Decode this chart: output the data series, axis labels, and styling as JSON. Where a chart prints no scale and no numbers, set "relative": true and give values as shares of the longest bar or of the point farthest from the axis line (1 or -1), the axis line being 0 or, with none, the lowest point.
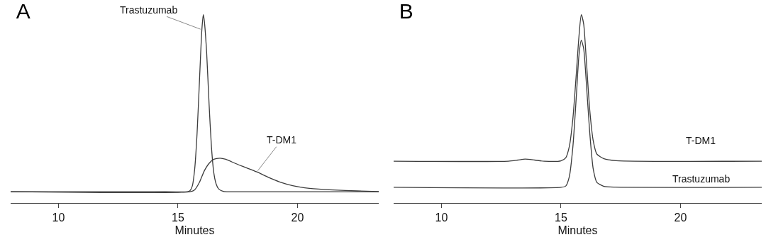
{
  "chart_data": [
    {
      "type": "line",
      "title": "A",
      "xlabel": "Minutes",
      "relative": true,
      "xlim": [
        8,
        23.4
      ],
      "xticks": [
        10,
        15,
        20
      ],
      "series": [
        {
          "name": "Trastuzumab",
          "color": "#3c3c3c",
          "x": [
            8,
            14,
            15.4,
            15.5,
            15.6,
            15.7,
            15.8,
            15.9,
            16.0,
            16.06,
            16.1,
            16.2,
            16.3,
            16.4,
            16.5,
            16.6,
            16.7,
            16.9,
            17.2,
            23.4
          ],
          "values": [
            0.06,
            0.06,
            0.06,
            0.065,
            0.09,
            0.18,
            0.37,
            0.65,
            0.92,
            1.0,
            0.97,
            0.8,
            0.53,
            0.3,
            0.16,
            0.1,
            0.075,
            0.062,
            0.06,
            0.06
          ]
        },
        {
          "name": "T-DM1",
          "color": "#3c3c3c",
          "x": [
            8,
            15.5,
            15.7,
            15.9,
            16.1,
            16.3,
            16.5,
            16.76,
            17.0,
            17.4,
            17.8,
            18.3,
            18.8,
            19.3,
            19.8,
            20.5,
            21.5,
            22.5,
            23.4
          ],
          "values": [
            0.06,
            0.06,
            0.07,
            0.11,
            0.17,
            0.21,
            0.232,
            0.238,
            0.232,
            0.21,
            0.19,
            0.165,
            0.135,
            0.11,
            0.092,
            0.078,
            0.069,
            0.064,
            0.061
          ]
        }
      ]
    },
    {
      "type": "line",
      "title": "B",
      "xlabel": "Minutes",
      "relative": true,
      "xlim": [
        8,
        23.4
      ],
      "xticks": [
        10,
        15,
        20
      ],
      "series": [
        {
          "name": "T-DM1",
          "color": "#3c3c3c",
          "x": [
            8,
            12.8,
            13.2,
            13.5,
            13.9,
            14.3,
            15.0,
            15.2,
            15.35,
            15.5,
            15.65,
            15.75,
            15.85,
            15.95,
            16.05,
            16.2,
            16.35,
            16.5,
            16.8,
            17.3,
            23.4
          ],
          "values": [
            0.222,
            0.222,
            0.228,
            0.233,
            0.228,
            0.222,
            0.224,
            0.24,
            0.3,
            0.45,
            0.7,
            0.88,
            1.0,
            0.95,
            0.78,
            0.5,
            0.33,
            0.26,
            0.235,
            0.225,
            0.222
          ]
        },
        {
          "name": "Trastuzumab",
          "color": "#3c3c3c",
          "x": [
            8,
            15.0,
            15.2,
            15.35,
            15.5,
            15.65,
            15.75,
            15.85,
            15.95,
            16.05,
            16.2,
            16.35,
            16.5,
            16.8,
            17.3,
            23.4
          ],
          "values": [
            0.083,
            0.083,
            0.09,
            0.14,
            0.3,
            0.58,
            0.78,
            0.864,
            0.82,
            0.66,
            0.38,
            0.18,
            0.11,
            0.088,
            0.084,
            0.083
          ]
        }
      ]
    }
  ]
}
